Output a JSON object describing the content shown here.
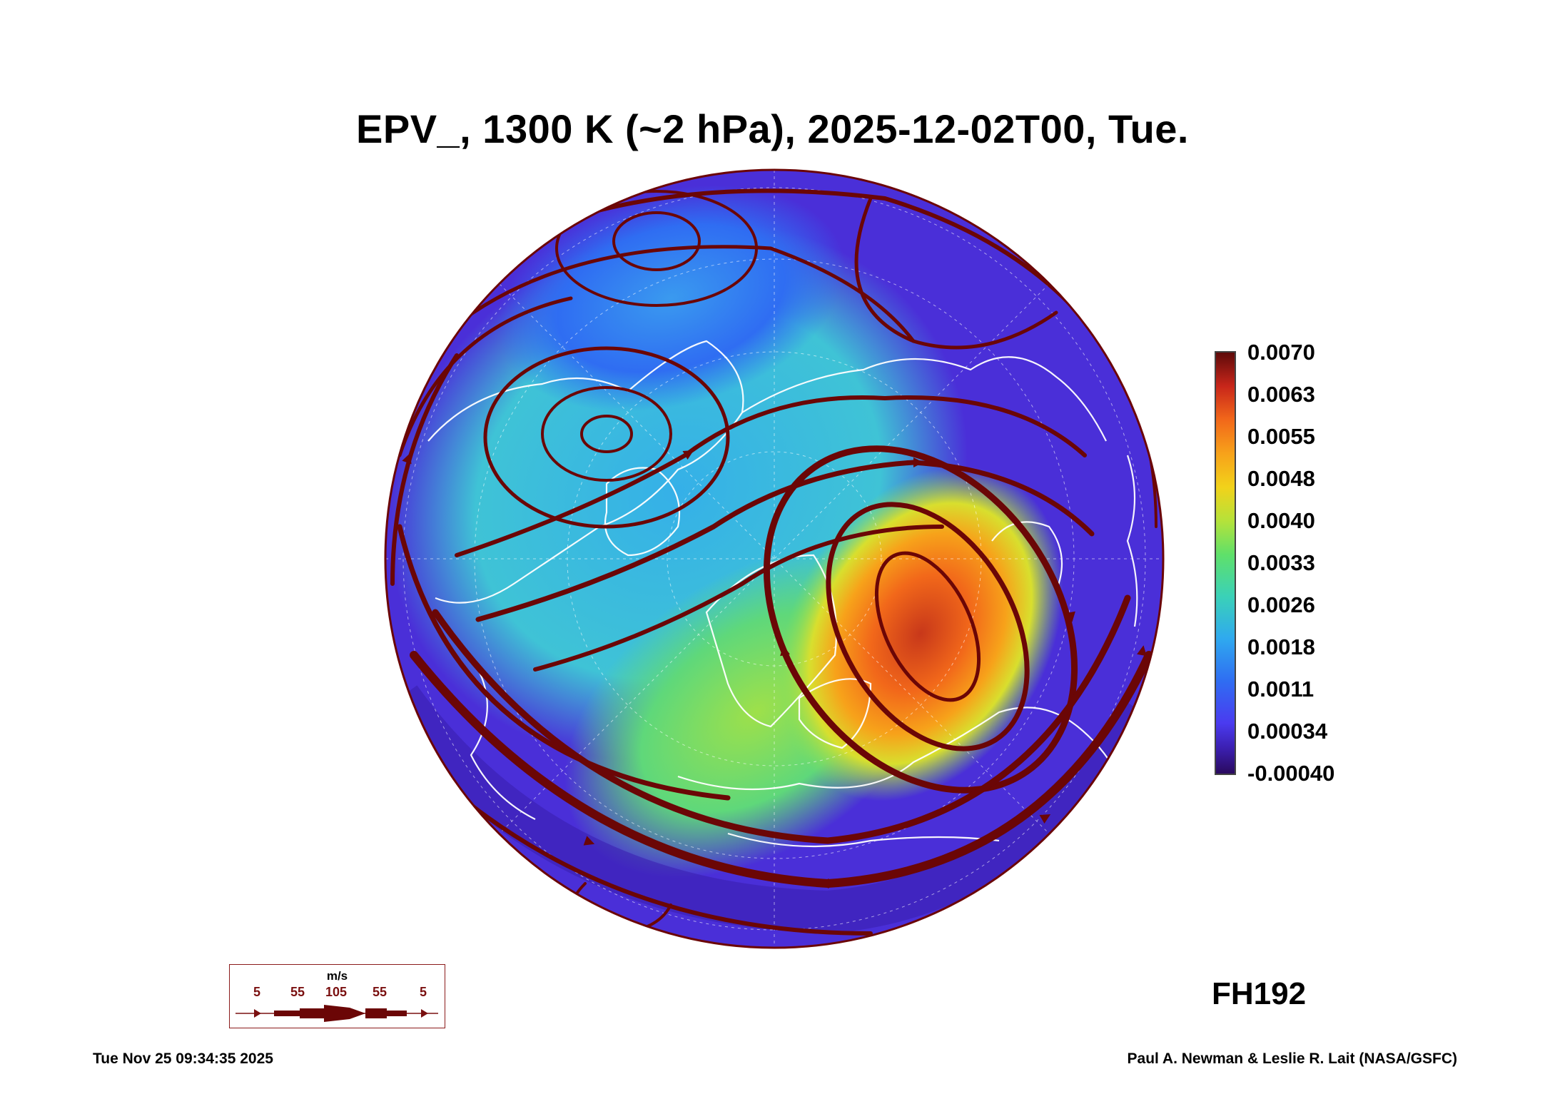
{
  "title": "EPV_, 1300 K (~2 hPa), 2025-12-02T00, Tue.",
  "colorbar": {
    "ticks": [
      "0.0070",
      "0.0063",
      "0.0055",
      "0.0048",
      "0.0040",
      "0.0033",
      "0.0026",
      "0.0018",
      "0.0011",
      "0.00034",
      "-0.00040"
    ],
    "range": [
      -0.0004,
      0.007
    ]
  },
  "forecast_hour": "FH192",
  "wind_legend": {
    "unit": "m/s",
    "speeds": [
      "5",
      "55",
      "105",
      "55",
      "5"
    ]
  },
  "timestamp": "Tue Nov 25 09:34:35 2025",
  "credit": "Paul A. Newman & Leslie R. Lait (NASA/GSFC)",
  "colors": {
    "streamline": "#6b0606",
    "coastline": "#ffffff",
    "low_pv": "#4a2fd8",
    "mid_pv": "#3ab8e0",
    "high_pv": "#f2681a"
  }
}
